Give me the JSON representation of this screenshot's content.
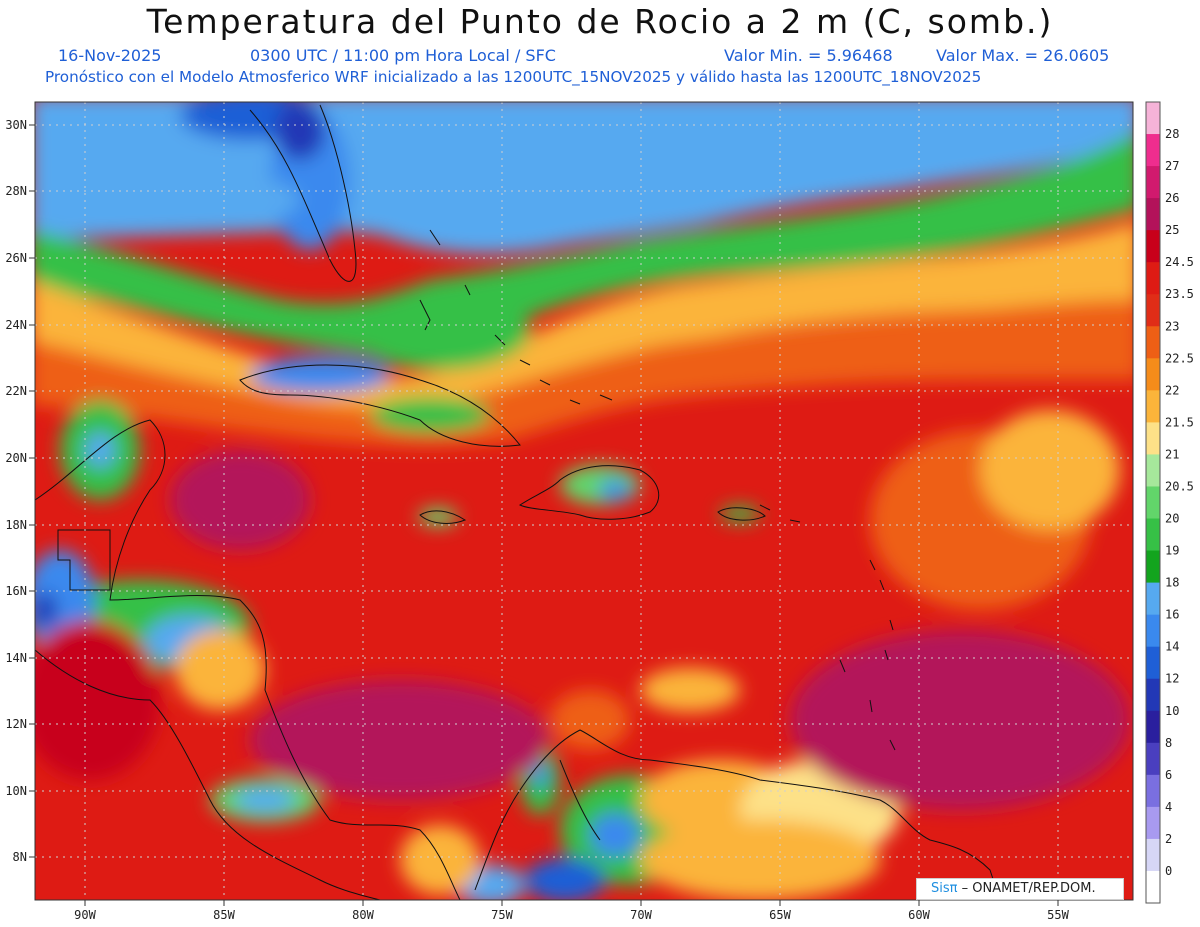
{
  "title": "Temperatura del Punto de Rocio a 2 m (C, somb.)",
  "subtitle": {
    "date": "16-Nov-2025",
    "time": "0300 UTC / 11:00 pm Hora Local / SFC",
    "min": "Valor Min. = 5.96468",
    "max": "Valor Max. = 26.0605",
    "model": "Pronóstico con el Modelo Atmosferico WRF inicializado a las 1200UTC_15NOV2025 y válido hasta las  1200UTC_18NOV2025"
  },
  "lat_labels": [
    "30N",
    "28N",
    "26N",
    "24N",
    "22N",
    "20N",
    "18N",
    "16N",
    "14N",
    "12N",
    "10N",
    "8N"
  ],
  "lon_labels": [
    "90W",
    "85W",
    "80W",
    "75W",
    "70W",
    "65W",
    "60W",
    "55W"
  ],
  "legend": {
    "labels": [
      "28",
      "27",
      "26",
      "25",
      "24.5",
      "23.5",
      "23",
      "22.5",
      "22",
      "21.5",
      "21",
      "20.5",
      "20",
      "19",
      "18",
      "16",
      "14",
      "12",
      "10",
      "8",
      "6",
      "4",
      "2",
      "0"
    ],
    "colors": [
      "#f6b3d8",
      "#ef2d8e",
      "#d11a6e",
      "#b3125a",
      "#c8001a",
      "#de1b14",
      "#e02d17",
      "#ee5f15",
      "#f58c1a",
      "#fbb43a",
      "#fde188",
      "#a6e89b",
      "#62d56a",
      "#36c046",
      "#13a41e",
      "#56a9f0",
      "#3a89ee",
      "#1f5fd6",
      "#2238b6",
      "#2a1f9e",
      "#4a3fbf",
      "#7a6fe0",
      "#a89af0",
      "#d6d6f6",
      "#ffffff"
    ]
  },
  "credit": {
    "brand": "Sisπ",
    "text": "– ONAMET/REP.DOM."
  }
}
